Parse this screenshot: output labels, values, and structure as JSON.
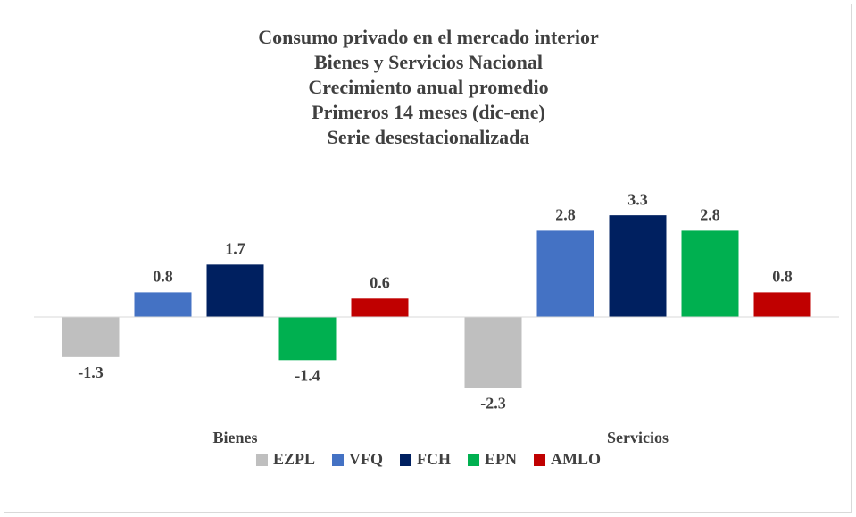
{
  "chart_data": {
    "type": "bar",
    "title": [
      "Consumo privado en el mercado interior",
      "Bienes y Servicios Nacional",
      "Crecimiento anual promedio",
      "Primeros 14 meses (dic-ene)",
      "Serie desestacionalizada"
    ],
    "categories": [
      "Bienes",
      "Servicios"
    ],
    "series": [
      {
        "name": "EZPL",
        "color": "#bfbfbf",
        "values": [
          -1.3,
          -2.3
        ]
      },
      {
        "name": "VFQ",
        "color": "#4472c4",
        "values": [
          0.8,
          2.8
        ]
      },
      {
        "name": "FCH",
        "color": "#002060",
        "values": [
          1.7,
          3.3
        ]
      },
      {
        "name": "EPN",
        "color": "#00b050",
        "values": [
          -1.4,
          2.8
        ]
      },
      {
        "name": "AMLO",
        "color": "#c00000",
        "values": [
          0.6,
          0.8
        ]
      }
    ],
    "ylim": [
      -3,
      4
    ],
    "legend": "bottom"
  }
}
